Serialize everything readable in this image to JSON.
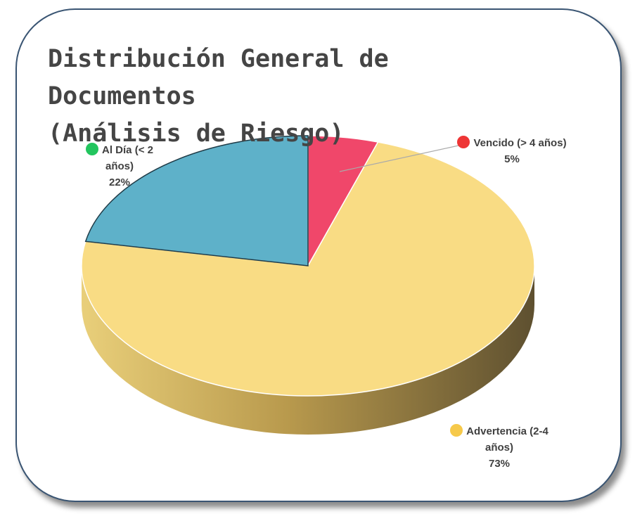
{
  "chart_data": {
    "type": "pie",
    "title": "Distribución General de Documentos\n(Análisis de Riesgo)",
    "categories": [
      "Vencido (> 4 años)",
      "Advertencia (2-4 años)",
      "Al Día (< 2 años)"
    ],
    "values": [
      5,
      73,
      22
    ],
    "value_labels": [
      "5%",
      "73%",
      "22%"
    ],
    "colors": [
      "#f0476a",
      "#f9dc84",
      "#5eb1c9"
    ],
    "label_marker_colors": [
      "#ee3535",
      "#f6c94a",
      "#22c55e"
    ]
  }
}
